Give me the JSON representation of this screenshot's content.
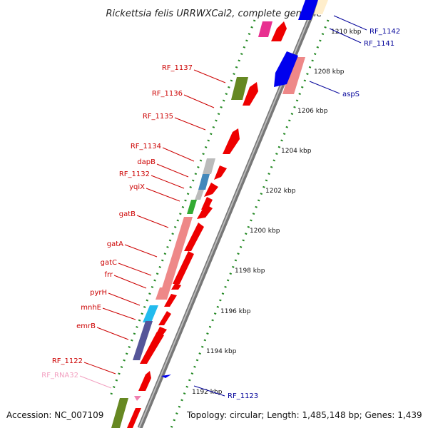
{
  "title": "Rickettsia felis URRWXCal2, complete genome",
  "accession": "Accession: NC_007109",
  "topology": "Topology: circular; Length: 1,485,148 bp; Genes: 1,439",
  "colors": {
    "backbone": "#888888",
    "forward_gene": "#ee0000",
    "reverse_gene": "#0000dd",
    "dots": "#228822",
    "label_red": "#cc0000",
    "label_blue": "#000099",
    "label_pink": "#f2a0c0"
  },
  "ruler_ticks": [
    {
      "label": "1210 kbp",
      "kbp": 1210
    },
    {
      "label": "1208 kbp",
      "kbp": 1208
    },
    {
      "label": "1206 kbp",
      "kbp": 1206
    },
    {
      "label": "1204 kbp",
      "kbp": 1204
    },
    {
      "label": "1202 kbp",
      "kbp": 1202
    },
    {
      "label": "1200 kbp",
      "kbp": 1200
    },
    {
      "label": "1198 kbp",
      "kbp": 1198
    },
    {
      "label": "1196 kbp",
      "kbp": 1196
    },
    {
      "label": "1194 kbp",
      "kbp": 1194
    },
    {
      "label": "1192 kbp",
      "kbp": 1192
    }
  ],
  "left_labels": [
    {
      "name": "RF_1137",
      "style": "red"
    },
    {
      "name": "RF_1136",
      "style": "red"
    },
    {
      "name": "RF_1135",
      "style": "red"
    },
    {
      "name": "RF_1134",
      "style": "red"
    },
    {
      "name": "dapB",
      "style": "red"
    },
    {
      "name": "RF_1132",
      "style": "red"
    },
    {
      "name": "yqiX",
      "style": "red"
    },
    {
      "name": "gatB",
      "style": "red"
    },
    {
      "name": "gatA",
      "style": "red"
    },
    {
      "name": "gatC",
      "style": "red"
    },
    {
      "name": "frr",
      "style": "red"
    },
    {
      "name": "pyrH",
      "style": "red"
    },
    {
      "name": "mnhE",
      "style": "red"
    },
    {
      "name": "emrB",
      "style": "red"
    },
    {
      "name": "RF_1122",
      "style": "red"
    },
    {
      "name": "RF_RNA32",
      "style": "pink"
    }
  ],
  "right_labels": [
    {
      "name": "RF_1142"
    },
    {
      "name": "RF_1141"
    },
    {
      "name": "aspS"
    },
    {
      "name": "RF_1123"
    }
  ]
}
